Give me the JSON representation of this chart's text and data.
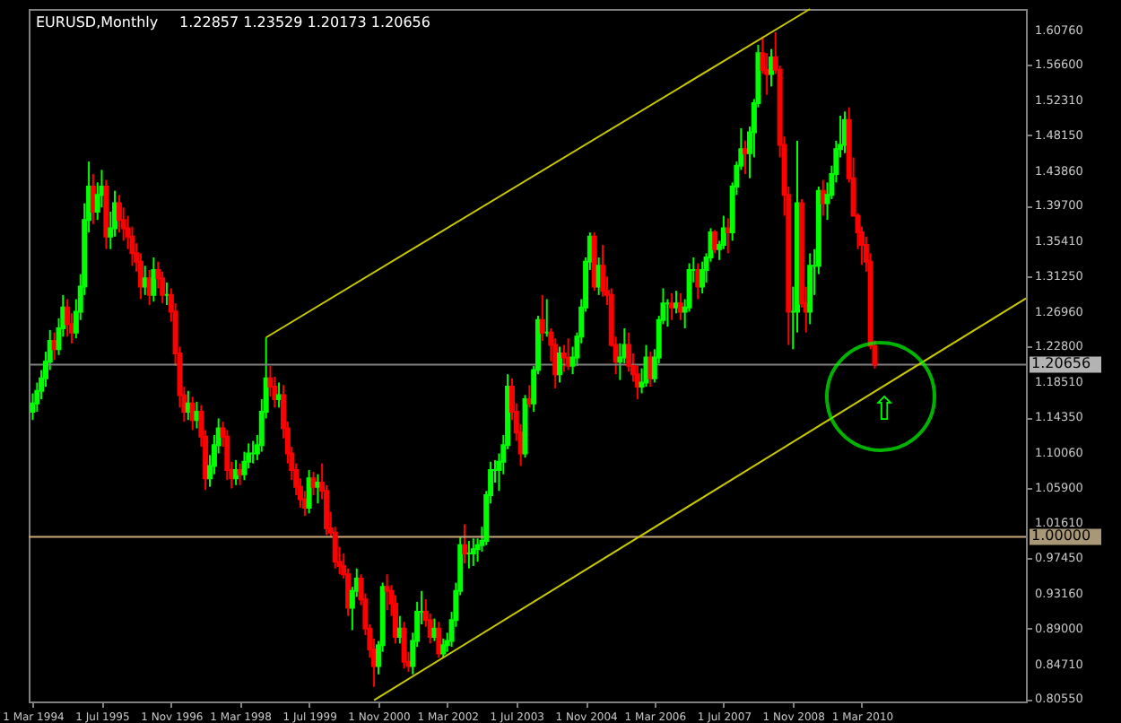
{
  "chart_data": {
    "type": "candlestick",
    "title": "EURUSD,Monthly",
    "annotations": [
      "1.22857 1.23529 1.20173 1.20656",
      "⇧"
    ],
    "x": [
      "1994-03",
      "1994-04",
      "1994-05",
      "1994-06",
      "1994-07",
      "1994-08",
      "1994-09",
      "1994-10",
      "1994-11",
      "1994-12",
      "1995-01",
      "1995-02",
      "1995-03",
      "1995-04",
      "1995-05",
      "1995-06",
      "1995-07",
      "1995-08",
      "1995-09",
      "1995-10",
      "1995-11",
      "1995-12",
      "1996-01",
      "1996-02",
      "1996-03",
      "1996-04",
      "1996-05",
      "1996-06",
      "1996-07",
      "1996-08",
      "1996-09",
      "1996-10",
      "1996-11",
      "1996-12",
      "1997-01",
      "1997-02",
      "1997-03",
      "1997-04",
      "1997-05",
      "1997-06",
      "1997-07",
      "1997-08",
      "1997-09",
      "1997-10",
      "1997-11",
      "1997-12",
      "1998-01",
      "1998-02",
      "1998-03",
      "1998-04",
      "1998-05",
      "1998-06",
      "1998-07",
      "1998-08",
      "1998-09",
      "1998-10",
      "1998-11",
      "1998-12",
      "1999-01",
      "1999-02",
      "1999-03",
      "1999-04",
      "1999-05",
      "1999-06",
      "1999-07",
      "1999-08",
      "1999-09",
      "1999-10",
      "1999-11",
      "1999-12",
      "2000-01",
      "2000-02",
      "2000-03",
      "2000-04",
      "2000-05",
      "2000-06",
      "2000-07",
      "2000-08",
      "2000-09",
      "2000-10",
      "2000-11",
      "2000-12",
      "2001-01",
      "2001-02",
      "2001-03",
      "2001-04",
      "2001-05",
      "2001-06",
      "2001-07",
      "2001-08",
      "2001-09",
      "2001-10",
      "2001-11",
      "2001-12",
      "2002-01",
      "2002-02",
      "2002-03",
      "2002-04",
      "2002-05",
      "2002-06",
      "2002-07",
      "2002-08",
      "2002-09",
      "2002-10",
      "2002-11",
      "2002-12",
      "2003-01",
      "2003-02",
      "2003-03",
      "2003-04",
      "2003-05",
      "2003-06",
      "2003-07",
      "2003-08",
      "2003-09",
      "2003-10",
      "2003-11",
      "2003-12",
      "2004-01",
      "2004-02",
      "2004-03",
      "2004-04",
      "2004-05",
      "2004-06",
      "2004-07",
      "2004-08",
      "2004-09",
      "2004-10",
      "2004-11",
      "2004-12",
      "2005-01",
      "2005-02",
      "2005-03",
      "2005-04",
      "2005-05",
      "2005-06",
      "2005-07",
      "2005-08",
      "2005-09",
      "2005-10",
      "2005-11",
      "2005-12",
      "2006-01",
      "2006-02",
      "2006-03",
      "2006-04",
      "2006-05",
      "2006-06",
      "2006-07",
      "2006-08",
      "2006-09",
      "2006-10",
      "2006-11",
      "2006-12",
      "2007-01",
      "2007-02",
      "2007-03",
      "2007-04",
      "2007-05",
      "2007-06",
      "2007-07",
      "2007-08",
      "2007-09",
      "2007-10",
      "2007-11",
      "2007-12",
      "2008-01",
      "2008-02",
      "2008-03",
      "2008-04",
      "2008-05",
      "2008-06",
      "2008-07",
      "2008-08",
      "2008-09",
      "2008-10",
      "2008-11",
      "2008-12",
      "2009-01",
      "2009-02",
      "2009-03",
      "2009-04",
      "2009-05",
      "2009-06",
      "2009-07",
      "2009-08",
      "2009-09",
      "2009-10",
      "2009-11",
      "2009-12",
      "2010-01",
      "2010-02",
      "2010-03",
      "2010-04",
      "2010-05",
      "2010-06"
    ],
    "ohlc": [
      [
        1.15,
        1.172,
        1.14,
        1.16
      ],
      [
        1.16,
        1.185,
        1.15,
        1.175
      ],
      [
        1.175,
        1.2,
        1.165,
        1.19
      ],
      [
        1.19,
        1.222,
        1.18,
        1.21
      ],
      [
        1.21,
        1.248,
        1.2,
        1.235
      ],
      [
        1.235,
        1.245,
        1.212,
        1.225
      ],
      [
        1.225,
        1.262,
        1.218,
        1.25
      ],
      [
        1.25,
        1.29,
        1.24,
        1.275
      ],
      [
        1.275,
        1.285,
        1.24,
        1.255
      ],
      [
        1.255,
        1.268,
        1.232,
        1.245
      ],
      [
        1.245,
        1.285,
        1.238,
        1.27
      ],
      [
        1.27,
        1.315,
        1.26,
        1.3
      ],
      [
        1.3,
        1.4,
        1.29,
        1.38
      ],
      [
        1.38,
        1.45,
        1.365,
        1.42
      ],
      [
        1.42,
        1.435,
        1.375,
        1.39
      ],
      [
        1.39,
        1.425,
        1.38,
        1.41
      ],
      [
        1.41,
        1.44,
        1.395,
        1.42
      ],
      [
        1.42,
        1.428,
        1.345,
        1.36
      ],
      [
        1.36,
        1.39,
        1.345,
        1.37
      ],
      [
        1.37,
        1.415,
        1.36,
        1.4
      ],
      [
        1.4,
        1.41,
        1.365,
        1.38
      ],
      [
        1.38,
        1.395,
        1.355,
        1.37
      ],
      [
        1.37,
        1.385,
        1.345,
        1.36
      ],
      [
        1.36,
        1.372,
        1.325,
        1.34
      ],
      [
        1.34,
        1.352,
        1.318,
        1.33
      ],
      [
        1.33,
        1.34,
        1.285,
        1.3
      ],
      [
        1.3,
        1.325,
        1.29,
        1.31
      ],
      [
        1.31,
        1.32,
        1.278,
        1.29
      ],
      [
        1.29,
        1.335,
        1.282,
        1.32
      ],
      [
        1.32,
        1.33,
        1.298,
        1.31
      ],
      [
        1.31,
        1.318,
        1.28,
        1.29
      ],
      [
        1.29,
        1.305,
        1.278,
        1.29
      ],
      [
        1.29,
        1.298,
        1.258,
        1.27
      ],
      [
        1.27,
        1.28,
        1.205,
        1.22
      ],
      [
        1.22,
        1.228,
        1.155,
        1.17
      ],
      [
        1.17,
        1.18,
        1.138,
        1.15
      ],
      [
        1.15,
        1.175,
        1.14,
        1.16
      ],
      [
        1.16,
        1.168,
        1.128,
        1.14
      ],
      [
        1.14,
        1.162,
        1.13,
        1.15
      ],
      [
        1.15,
        1.158,
        1.108,
        1.12
      ],
      [
        1.12,
        1.128,
        1.056,
        1.07
      ],
      [
        1.07,
        1.098,
        1.06,
        1.085
      ],
      [
        1.085,
        1.122,
        1.075,
        1.11
      ],
      [
        1.11,
        1.142,
        1.1,
        1.13
      ],
      [
        1.13,
        1.138,
        1.108,
        1.12
      ],
      [
        1.12,
        1.128,
        1.068,
        1.08
      ],
      [
        1.08,
        1.09,
        1.058,
        1.07
      ],
      [
        1.07,
        1.092,
        1.062,
        1.08
      ],
      [
        1.08,
        1.088,
        1.062,
        1.075
      ],
      [
        1.075,
        1.102,
        1.068,
        1.09
      ],
      [
        1.09,
        1.112,
        1.082,
        1.1
      ],
      [
        1.1,
        1.115,
        1.088,
        1.1
      ],
      [
        1.1,
        1.122,
        1.092,
        1.11
      ],
      [
        1.11,
        1.165,
        1.102,
        1.15
      ],
      [
        1.15,
        1.239,
        1.142,
        1.19
      ],
      [
        1.19,
        1.205,
        1.168,
        1.18
      ],
      [
        1.18,
        1.192,
        1.155,
        1.165
      ],
      [
        1.165,
        1.185,
        1.155,
        1.17
      ],
      [
        1.17,
        1.182,
        1.118,
        1.13
      ],
      [
        1.13,
        1.138,
        1.088,
        1.1
      ],
      [
        1.1,
        1.108,
        1.068,
        1.08
      ],
      [
        1.08,
        1.088,
        1.05,
        1.06
      ],
      [
        1.06,
        1.07,
        1.035,
        1.045
      ],
      [
        1.045,
        1.055,
        1.025,
        1.035
      ],
      [
        1.035,
        1.08,
        1.028,
        1.07
      ],
      [
        1.07,
        1.078,
        1.05,
        1.06
      ],
      [
        1.06,
        1.075,
        1.04,
        1.065
      ],
      [
        1.065,
        1.088,
        1.045,
        1.055
      ],
      [
        1.055,
        1.062,
        1.002,
        1.01
      ],
      [
        1.01,
        1.03,
        1.0,
        1.005
      ],
      [
        1.005,
        1.012,
        0.962,
        0.97
      ],
      [
        0.97,
        0.988,
        0.955,
        0.965
      ],
      [
        0.965,
        0.98,
        0.95,
        0.955
      ],
      [
        0.955,
        0.962,
        0.905,
        0.915
      ],
      [
        0.915,
        0.94,
        0.888,
        0.935
      ],
      [
        0.935,
        0.962,
        0.928,
        0.95
      ],
      [
        0.95,
        0.955,
        0.918,
        0.925
      ],
      [
        0.925,
        0.932,
        0.882,
        0.89
      ],
      [
        0.89,
        0.895,
        0.855,
        0.865
      ],
      [
        0.865,
        0.878,
        0.82,
        0.845
      ],
      [
        0.845,
        0.875,
        0.835,
        0.87
      ],
      [
        0.87,
        0.945,
        0.862,
        0.94
      ],
      [
        0.94,
        0.955,
        0.912,
        0.935
      ],
      [
        0.935,
        0.942,
        0.905,
        0.92
      ],
      [
        0.92,
        0.93,
        0.872,
        0.88
      ],
      [
        0.88,
        0.905,
        0.872,
        0.89
      ],
      [
        0.89,
        0.898,
        0.842,
        0.85
      ],
      [
        0.85,
        0.862,
        0.838,
        0.845
      ],
      [
        0.845,
        0.885,
        0.835,
        0.875
      ],
      [
        0.875,
        0.922,
        0.868,
        0.91
      ],
      [
        0.91,
        0.935,
        0.895,
        0.91
      ],
      [
        0.91,
        0.925,
        0.892,
        0.9
      ],
      [
        0.9,
        0.908,
        0.872,
        0.88
      ],
      [
        0.88,
        0.902,
        0.875,
        0.89
      ],
      [
        0.89,
        0.898,
        0.855,
        0.86
      ],
      [
        0.86,
        0.878,
        0.855,
        0.87
      ],
      [
        0.87,
        0.885,
        0.862,
        0.875
      ],
      [
        0.875,
        0.91,
        0.868,
        0.9
      ],
      [
        0.9,
        0.945,
        0.892,
        0.935
      ],
      [
        0.935,
        1.0,
        0.93,
        0.99
      ],
      [
        0.99,
        1.015,
        0.968,
        0.98
      ],
      [
        0.98,
        0.995,
        0.962,
        0.98
      ],
      [
        0.98,
        0.998,
        0.965,
        0.985
      ],
      [
        0.985,
        0.998,
        0.97,
        0.99
      ],
      [
        0.99,
        1.012,
        0.982,
        0.995
      ],
      [
        0.995,
        1.055,
        0.99,
        1.05
      ],
      [
        1.05,
        1.09,
        1.04,
        1.08
      ],
      [
        1.08,
        1.092,
        1.065,
        1.08
      ],
      [
        1.08,
        1.1,
        1.055,
        1.09
      ],
      [
        1.09,
        1.122,
        1.075,
        1.11
      ],
      [
        1.11,
        1.195,
        1.105,
        1.18
      ],
      [
        1.18,
        1.19,
        1.14,
        1.15
      ],
      [
        1.15,
        1.16,
        1.115,
        1.125
      ],
      [
        1.125,
        1.135,
        1.085,
        1.1
      ],
      [
        1.1,
        1.17,
        1.095,
        1.165
      ],
      [
        1.165,
        1.182,
        1.155,
        1.16
      ],
      [
        1.16,
        1.205,
        1.15,
        1.2
      ],
      [
        1.2,
        1.265,
        1.195,
        1.26
      ],
      [
        1.26,
        1.29,
        1.235,
        1.245
      ],
      [
        1.245,
        1.285,
        1.24,
        1.245
      ],
      [
        1.245,
        1.25,
        1.21,
        1.23
      ],
      [
        1.23,
        1.238,
        1.178,
        1.195
      ],
      [
        1.195,
        1.228,
        1.185,
        1.22
      ],
      [
        1.22,
        1.23,
        1.198,
        1.215
      ],
      [
        1.215,
        1.238,
        1.2,
        1.205
      ],
      [
        1.205,
        1.228,
        1.195,
        1.215
      ],
      [
        1.215,
        1.245,
        1.205,
        1.24
      ],
      [
        1.24,
        1.285,
        1.232,
        1.275
      ],
      [
        1.275,
        1.335,
        1.27,
        1.33
      ],
      [
        1.33,
        1.365,
        1.32,
        1.36
      ],
      [
        1.36,
        1.365,
        1.295,
        1.3
      ],
      [
        1.3,
        1.335,
        1.29,
        1.325
      ],
      [
        1.325,
        1.35,
        1.288,
        1.295
      ],
      [
        1.295,
        1.312,
        1.278,
        1.29
      ],
      [
        1.29,
        1.298,
        1.228,
        1.23
      ],
      [
        1.23,
        1.24,
        1.195,
        1.21
      ],
      [
        1.21,
        1.232,
        1.188,
        1.215
      ],
      [
        1.215,
        1.25,
        1.208,
        1.23
      ],
      [
        1.23,
        1.245,
        1.198,
        1.205
      ],
      [
        1.205,
        1.22,
        1.186,
        1.195
      ],
      [
        1.195,
        1.205,
        1.165,
        1.18
      ],
      [
        1.18,
        1.202,
        1.172,
        1.185
      ],
      [
        1.185,
        1.23,
        1.18,
        1.215
      ],
      [
        1.215,
        1.222,
        1.18,
        1.19
      ],
      [
        1.19,
        1.225,
        1.185,
        1.215
      ],
      [
        1.215,
        1.265,
        1.208,
        1.26
      ],
      [
        1.26,
        1.298,
        1.255,
        1.28
      ],
      [
        1.28,
        1.285,
        1.252,
        1.28
      ],
      [
        1.28,
        1.292,
        1.26,
        1.275
      ],
      [
        1.275,
        1.295,
        1.268,
        1.28
      ],
      [
        1.28,
        1.292,
        1.26,
        1.27
      ],
      [
        1.27,
        1.285,
        1.25,
        1.275
      ],
      [
        1.275,
        1.328,
        1.27,
        1.32
      ],
      [
        1.32,
        1.335,
        1.305,
        1.32
      ],
      [
        1.32,
        1.328,
        1.285,
        1.3
      ],
      [
        1.3,
        1.33,
        1.292,
        1.32
      ],
      [
        1.32,
        1.34,
        1.305,
        1.335
      ],
      [
        1.335,
        1.37,
        1.33,
        1.365
      ],
      [
        1.365,
        1.368,
        1.34,
        1.345
      ],
      [
        1.345,
        1.355,
        1.332,
        1.35
      ],
      [
        1.35,
        1.385,
        1.345,
        1.37
      ],
      [
        1.37,
        1.382,
        1.34,
        1.365
      ],
      [
        1.365,
        1.425,
        1.355,
        1.42
      ],
      [
        1.42,
        1.45,
        1.41,
        1.445
      ],
      [
        1.445,
        1.49,
        1.44,
        1.465
      ],
      [
        1.465,
        1.475,
        1.435,
        1.46
      ],
      [
        1.46,
        1.492,
        1.43,
        1.485
      ],
      [
        1.485,
        1.525,
        1.455,
        1.52
      ],
      [
        1.52,
        1.59,
        1.515,
        1.58
      ],
      [
        1.58,
        1.6,
        1.555,
        1.56
      ],
      [
        1.56,
        1.58,
        1.53,
        1.555
      ],
      [
        1.555,
        1.585,
        1.54,
        1.575
      ],
      [
        1.575,
        1.605,
        1.555,
        1.56
      ],
      [
        1.56,
        1.565,
        1.455,
        1.47
      ],
      [
        1.47,
        1.48,
        1.385,
        1.41
      ],
      [
        1.41,
        1.42,
        1.23,
        1.27
      ],
      [
        1.27,
        1.3,
        1.225,
        1.27
      ],
      [
        1.27,
        1.475,
        1.245,
        1.4
      ],
      [
        1.4,
        1.405,
        1.275,
        1.28
      ],
      [
        1.28,
        1.3,
        1.245,
        1.27
      ],
      [
        1.27,
        1.34,
        1.255,
        1.325
      ],
      [
        1.325,
        1.345,
        1.29,
        1.325
      ],
      [
        1.325,
        1.42,
        1.315,
        1.415
      ],
      [
        1.415,
        1.428,
        1.385,
        1.4
      ],
      [
        1.4,
        1.425,
        1.38,
        1.41
      ],
      [
        1.41,
        1.445,
        1.405,
        1.435
      ],
      [
        1.435,
        1.475,
        1.425,
        1.465
      ],
      [
        1.465,
        1.505,
        1.455,
        1.47
      ],
      [
        1.47,
        1.51,
        1.46,
        1.5
      ],
      [
        1.5,
        1.515,
        1.425,
        1.43
      ],
      [
        1.43,
        1.455,
        1.385,
        1.385
      ],
      [
        1.385,
        1.388,
        1.345,
        1.365
      ],
      [
        1.365,
        1.372,
        1.326,
        1.35
      ],
      [
        1.35,
        1.36,
        1.318,
        1.33
      ],
      [
        1.33,
        1.34,
        1.225,
        1.229
      ],
      [
        1.22857,
        1.23529,
        1.20173,
        1.20656
      ]
    ],
    "colors": [
      "#00ff00",
      "#00ff00",
      "#00ff00",
      "#00ff00",
      "#00ff00",
      "#ff0000",
      "#00ff00",
      "#00ff00",
      "#ff0000",
      "#ff0000",
      "#00ff00",
      "#00ff00",
      "#00ff00",
      "#00ff00",
      "#ff0000",
      "#00ff00",
      "#00ff00",
      "#ff0000",
      "#00ff00",
      "#00ff00",
      "#ff0000",
      "#ff0000",
      "#ff0000",
      "#ff0000",
      "#ff0000",
      "#ff0000",
      "#00ff00",
      "#ff0000",
      "#00ff00",
      "#ff0000",
      "#ff0000",
      "#00ff00",
      "#ff0000",
      "#ff0000",
      "#ff0000",
      "#ff0000",
      "#00ff00",
      "#ff0000",
      "#00ff00",
      "#ff0000",
      "#ff0000",
      "#00ff00",
      "#00ff00",
      "#00ff00",
      "#ff0000",
      "#ff0000",
      "#ff0000",
      "#00ff00",
      "#ff0000",
      "#00ff00",
      "#00ff00",
      "#00ff00",
      "#00ff00",
      "#00ff00",
      "#00ff00",
      "#ff0000",
      "#ff0000",
      "#00ff00",
      "#ff0000",
      "#ff0000",
      "#ff0000",
      "#ff0000",
      "#ff0000",
      "#ff0000",
      "#00ff00",
      "#ff0000",
      "#00ff00",
      "#ff0000",
      "#ff0000",
      "#ff0000",
      "#ff0000",
      "#ff0000",
      "#ff0000",
      "#ff0000",
      "#00ff00",
      "#00ff00",
      "#ff0000",
      "#ff0000",
      "#ff0000",
      "#ff0000",
      "#00ff00",
      "#00ff00",
      "#ff0000",
      "#ff0000",
      "#ff0000",
      "#00ff00",
      "#ff0000",
      "#ff0000",
      "#00ff00",
      "#00ff00",
      "#00ff00",
      "#ff0000",
      "#ff0000",
      "#00ff00",
      "#ff0000",
      "#00ff00",
      "#00ff00",
      "#00ff00",
      "#00ff00",
      "#00ff00",
      "#ff0000",
      "#00ff00",
      "#00ff00",
      "#00ff00",
      "#00ff00",
      "#00ff00",
      "#00ff00",
      "#00ff00",
      "#00ff00",
      "#00ff00",
      "#00ff00",
      "#ff0000",
      "#ff0000",
      "#ff0000",
      "#00ff00",
      "#ff0000",
      "#00ff00",
      "#00ff00",
      "#ff0000",
      "#00ff00",
      "#ff0000",
      "#ff0000",
      "#00ff00",
      "#ff0000",
      "#ff0000",
      "#00ff00",
      "#00ff00",
      "#00ff00",
      "#00ff00",
      "#00ff00",
      "#ff0000",
      "#00ff00",
      "#ff0000",
      "#ff0000",
      "#ff0000",
      "#ff0000",
      "#00ff00",
      "#00ff00",
      "#ff0000",
      "#ff0000",
      "#ff0000",
      "#00ff00",
      "#00ff00",
      "#ff0000",
      "#00ff00",
      "#00ff00",
      "#00ff00",
      "#00ff00",
      "#ff0000",
      "#00ff00",
      "#ff0000",
      "#00ff00",
      "#00ff00",
      "#00ff00",
      "#ff0000",
      "#00ff00",
      "#00ff00",
      "#00ff00",
      "#ff0000",
      "#00ff00",
      "#00ff00",
      "#ff0000",
      "#00ff00",
      "#00ff00",
      "#00ff00",
      "#ff0000",
      "#00ff00",
      "#00ff00",
      "#00ff00",
      "#ff0000",
      "#ff0000",
      "#00ff00",
      "#ff0000",
      "#ff0000",
      "#ff0000",
      "#ff0000",
      "#00ff00",
      "#00ff00",
      "#ff0000",
      "#ff0000",
      "#00ff00",
      "#00ff00",
      "#00ff00",
      "#ff0000",
      "#00ff00",
      "#00ff00",
      "#00ff00",
      "#00ff00",
      "#00ff00",
      "#ff0000",
      "#ff0000",
      "#ff0000",
      "#ff0000",
      "#ff0000",
      "#ff0000",
      "#ff0000"
    ],
    "series": [
      {
        "type": "line",
        "color": "#c8c800",
        "x": [
          "1998-09",
          "2009-03"
        ],
        "values": [
          1.239,
          1.633
        ]
      },
      {
        "type": "line",
        "color": "#c8c800",
        "x": [
          "2000-10",
          "2013-05"
        ],
        "values": [
          0.804,
          1.286
        ]
      }
    ],
    "ref_lines": [
      {
        "axis": "y",
        "value": 1.20656,
        "label": "1.20656",
        "color": "#808080"
      },
      {
        "axis": "y",
        "value": 1.0,
        "label": "1.00000",
        "color": "#c8a878"
      }
    ],
    "xlim": [
      "1994-02",
      "2013-05"
    ],
    "xticks": [
      {
        "value": "1994-03",
        "label": "1 Mar 1994"
      },
      {
        "value": "1995-07",
        "label": "1 Jul 1995"
      },
      {
        "value": "1996-11",
        "label": "1 Nov 1996"
      },
      {
        "value": "1998-03",
        "label": "1 Mar 1998"
      },
      {
        "value": "1999-07",
        "label": "1 Jul 1999"
      },
      {
        "value": "2000-11",
        "label": "1 Nov 2000"
      },
      {
        "value": "2002-03",
        "label": "1 Mar 2002"
      },
      {
        "value": "2003-07",
        "label": "1 Jul 2003"
      },
      {
        "value": "2004-11",
        "label": "1 Nov 2004"
      },
      {
        "value": "2006-03",
        "label": "1 Mar 2006"
      },
      {
        "value": "2007-07",
        "label": "1 Jul 2007"
      },
      {
        "value": "2008-11",
        "label": "1 Nov 2008"
      },
      {
        "value": "2010-03",
        "label": "1 Mar 2010"
      }
    ],
    "ylim": [
      0.8025,
      1.633
    ],
    "yticks": [
      {
        "value": 1.6076,
        "label": "1.60760"
      },
      {
        "value": 1.566,
        "label": "1.56600"
      },
      {
        "value": 1.5231,
        "label": "1.52310"
      },
      {
        "value": 1.4815,
        "label": "1.48150"
      },
      {
        "value": 1.4386,
        "label": "1.43860"
      },
      {
        "value": 1.397,
        "label": "1.39700"
      },
      {
        "value": 1.3541,
        "label": "1.35410"
      },
      {
        "value": 1.3125,
        "label": "1.31250"
      },
      {
        "value": 1.2696,
        "label": "1.26960"
      },
      {
        "value": 1.228,
        "label": "1.22800"
      },
      {
        "value": 1.1851,
        "label": "1.18510"
      },
      {
        "value": 1.1435,
        "label": "1.14350"
      },
      {
        "value": 1.1006,
        "label": "1.10060"
      },
      {
        "value": 1.059,
        "label": "1.05900"
      },
      {
        "value": 1.0161,
        "label": "1.01610"
      },
      {
        "value": 0.9745,
        "label": "0.97450"
      },
      {
        "value": 0.9316,
        "label": "0.93160"
      },
      {
        "value": 0.89,
        "label": "0.89000"
      },
      {
        "value": 0.8471,
        "label": "0.84710"
      },
      {
        "value": 0.8055,
        "label": "0.80550"
      }
    ]
  }
}
